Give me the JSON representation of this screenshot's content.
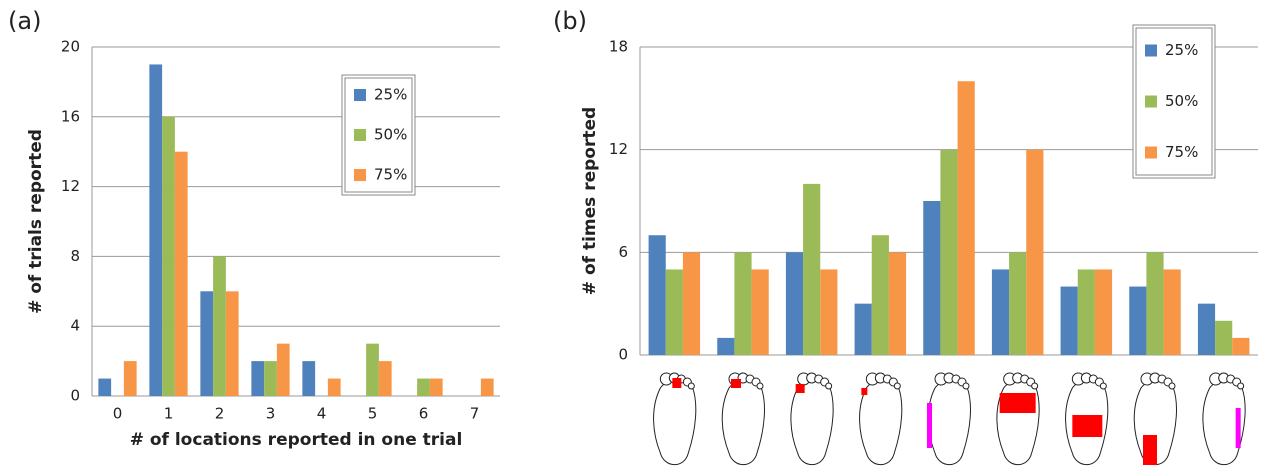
{
  "chart_data": [
    {
      "type": "bar",
      "title": "(a)",
      "y_label": "# of trials reported",
      "x_label": "# of locations reported in one trial",
      "categories": [
        "0",
        "1",
        "2",
        "3",
        "4",
        "5",
        "6",
        "7"
      ],
      "series": [
        {
          "name": "25%",
          "color": "#4f81bd",
          "values": [
            1,
            19,
            6,
            2,
            2,
            0,
            0,
            0
          ]
        },
        {
          "name": "50%",
          "color": "#9bbb59",
          "values": [
            0,
            16,
            8,
            2,
            0,
            3,
            1,
            0
          ]
        },
        {
          "name": "75%",
          "color": "#f79646",
          "values": [
            2,
            14,
            6,
            3,
            1,
            2,
            1,
            1
          ]
        }
      ],
      "ylim": [
        0,
        20
      ],
      "yticks": [
        0,
        4,
        8,
        12,
        16,
        20
      ],
      "grid": true
    },
    {
      "type": "bar",
      "title": "(b)",
      "y_label": "# of times reported",
      "categories": [
        null,
        null,
        null,
        null,
        null,
        null,
        null,
        null,
        null
      ],
      "series": [
        {
          "name": "25%",
          "color": "#4f81bd",
          "values": [
            7,
            1,
            6,
            3,
            9,
            5,
            4,
            4,
            3
          ]
        },
        {
          "name": "50%",
          "color": "#9bbb59",
          "values": [
            5,
            6,
            10,
            7,
            12,
            6,
            5,
            6,
            2
          ]
        },
        {
          "name": "75%",
          "color": "#f79646",
          "values": [
            6,
            5,
            5,
            6,
            16,
            12,
            5,
            5,
            1
          ]
        }
      ],
      "ylim": [
        0,
        18
      ],
      "yticks": [
        0,
        6,
        12,
        18
      ],
      "grid": true
    }
  ]
}
